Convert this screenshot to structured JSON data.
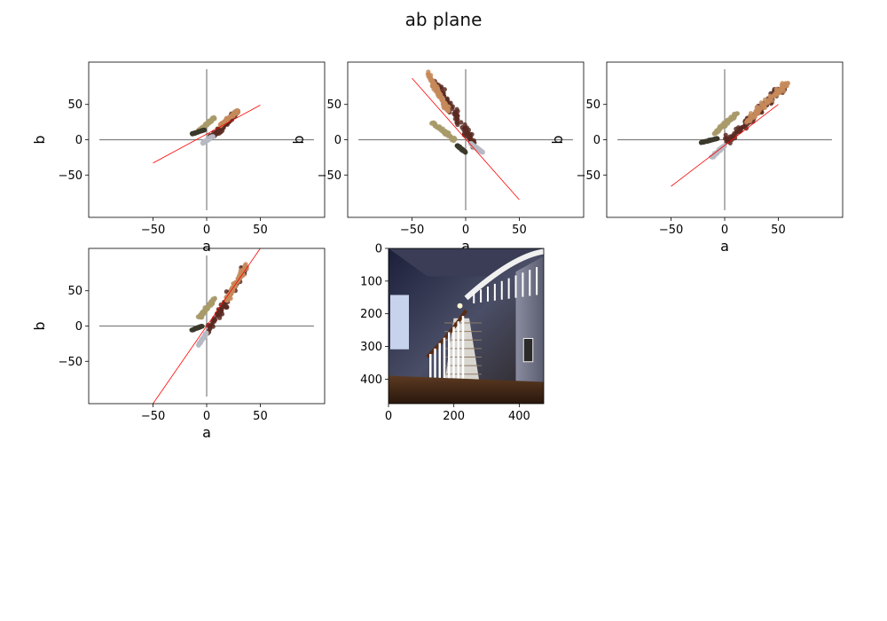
{
  "figure": {
    "suptitle": "ab plane"
  },
  "colors": {
    "axis_cross": "#808080",
    "fit_line": "#ff0000",
    "cluster_main": "#5a2a22",
    "cluster_light": "#c58a5a",
    "cluster_olive": "#a89a6a",
    "cluster_dark": "#3b3a2c",
    "cluster_gray": "#b7b9c3"
  },
  "chart_data": [
    {
      "type": "scatter",
      "title": "",
      "xlabel": "a",
      "ylabel": "b",
      "xlim": [
        -110,
        110
      ],
      "ylim": [
        -110,
        110
      ],
      "xticks": [
        -50,
        0,
        50
      ],
      "yticks": [
        -50,
        0,
        50
      ],
      "cross_lines": {
        "x": [
          -100,
          100
        ],
        "y": [
          -100,
          100
        ]
      },
      "fit_line": {
        "x": [
          -50,
          50
        ],
        "y": [
          -33,
          49
        ]
      },
      "clusters": [
        {
          "color_key": "cluster_main",
          "x": [
            2,
            30
          ],
          "y": [
            0,
            42
          ],
          "angle": 40
        },
        {
          "color_key": "cluster_light",
          "x": [
            12,
            30
          ],
          "y": [
            20,
            42
          ],
          "angle": 40
        },
        {
          "color_key": "cluster_olive",
          "x": [
            -8,
            8
          ],
          "y": [
            12,
            32
          ],
          "angle": 30
        },
        {
          "color_key": "cluster_dark",
          "x": [
            -14,
            -2
          ],
          "y": [
            8,
            14
          ],
          "angle": 0
        },
        {
          "color_key": "cluster_gray",
          "x": [
            -4,
            6
          ],
          "y": [
            -5,
            5
          ],
          "angle": 60
        }
      ]
    },
    {
      "type": "scatter",
      "title": "",
      "xlabel": "a",
      "ylabel": "b",
      "xlim": [
        -110,
        110
      ],
      "ylim": [
        -110,
        110
      ],
      "xticks": [
        -50,
        0,
        50
      ],
      "yticks": [
        -50,
        0,
        50
      ],
      "cross_lines": {
        "x": [
          -100,
          100
        ],
        "y": [
          -100,
          100
        ]
      },
      "fit_line": {
        "x": [
          -50,
          50
        ],
        "y": [
          87,
          -85
        ]
      },
      "clusters": [
        {
          "color_key": "cluster_main",
          "x": [
            -30,
            10
          ],
          "y": [
            -10,
            85
          ],
          "angle": -60
        },
        {
          "color_key": "cluster_light",
          "x": [
            -36,
            -16
          ],
          "y": [
            40,
            95
          ],
          "angle": -65
        },
        {
          "color_key": "cluster_olive",
          "x": [
            -32,
            -10
          ],
          "y": [
            0,
            25
          ],
          "angle": -40
        },
        {
          "color_key": "cluster_dark",
          "x": [
            -8,
            0
          ],
          "y": [
            -18,
            -8
          ],
          "angle": -30
        },
        {
          "color_key": "cluster_gray",
          "x": [
            4,
            16
          ],
          "y": [
            -18,
            -5
          ],
          "angle": -40
        }
      ]
    },
    {
      "type": "scatter",
      "title": "",
      "xlabel": "a",
      "ylabel": "b",
      "xlim": [
        -110,
        110
      ],
      "ylim": [
        -110,
        110
      ],
      "xticks": [
        -50,
        0,
        50
      ],
      "yticks": [
        -50,
        0,
        50
      ],
      "cross_lines": {
        "x": [
          -100,
          100
        ],
        "y": [
          -100,
          100
        ]
      },
      "fit_line": {
        "x": [
          -50,
          50
        ],
        "y": [
          -66,
          50
        ]
      },
      "clusters": [
        {
          "color_key": "cluster_main",
          "x": [
            0,
            60
          ],
          "y": [
            -5,
            80
          ],
          "angle": 48
        },
        {
          "color_key": "cluster_light",
          "x": [
            20,
            60
          ],
          "y": [
            25,
            82
          ],
          "angle": 50
        },
        {
          "color_key": "cluster_olive",
          "x": [
            -10,
            12
          ],
          "y": [
            8,
            38
          ],
          "angle": 40
        },
        {
          "color_key": "cluster_dark",
          "x": [
            -22,
            -6
          ],
          "y": [
            -4,
            2
          ],
          "angle": 0
        },
        {
          "color_key": "cluster_gray",
          "x": [
            -12,
            0
          ],
          "y": [
            -25,
            -8
          ],
          "angle": 55
        }
      ]
    },
    {
      "type": "scatter",
      "title": "",
      "xlabel": "a",
      "ylabel": "b",
      "xlim": [
        -110,
        110
      ],
      "ylim": [
        -110,
        110
      ],
      "xticks": [
        -50,
        0,
        50
      ],
      "yticks": [
        -50,
        0,
        50
      ],
      "cross_lines": {
        "x": [
          -100,
          100
        ],
        "y": [
          -100,
          100
        ]
      },
      "fit_line": {
        "x": [
          -50,
          50
        ],
        "y": [
          -110,
          110
        ]
      },
      "clusters": [
        {
          "color_key": "cluster_main",
          "x": [
            0,
            38
          ],
          "y": [
            -10,
            85
          ],
          "angle": 62
        },
        {
          "color_key": "cluster_light",
          "x": [
            18,
            38
          ],
          "y": [
            35,
            88
          ],
          "angle": 62
        },
        {
          "color_key": "cluster_olive",
          "x": [
            -8,
            8
          ],
          "y": [
            10,
            40
          ],
          "angle": 60
        },
        {
          "color_key": "cluster_dark",
          "x": [
            -14,
            -4
          ],
          "y": [
            -6,
            0
          ],
          "angle": 0
        },
        {
          "color_key": "cluster_gray",
          "x": [
            -8,
            0
          ],
          "y": [
            -28,
            -10
          ],
          "angle": 70
        }
      ]
    },
    {
      "type": "image",
      "title": "",
      "xticks": [
        0,
        200,
        400
      ],
      "yticks": [
        0,
        100,
        200,
        300,
        400
      ],
      "xlim": [
        0,
        475
      ],
      "ylim": [
        475,
        0
      ],
      "image_desc": "staircase-interior-photo"
    }
  ]
}
